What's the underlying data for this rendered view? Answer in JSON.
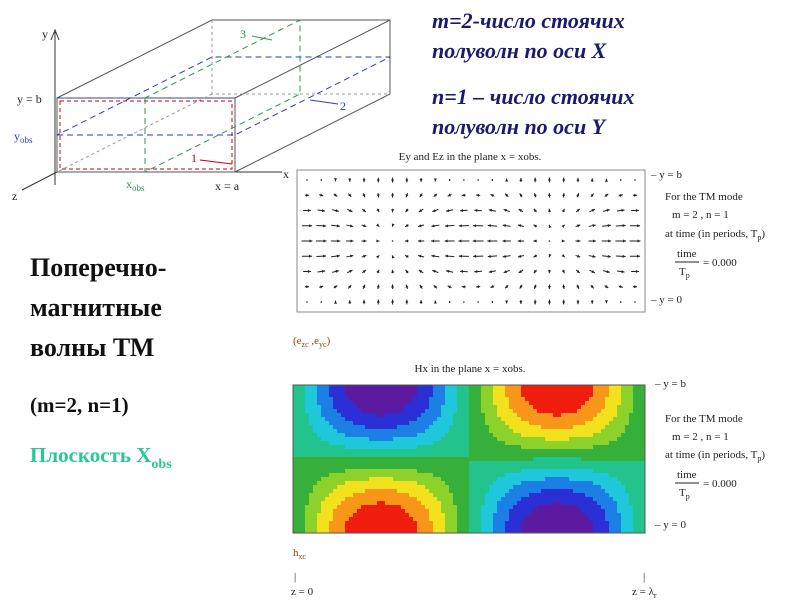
{
  "header": {
    "line1": "m=2-число стоячих",
    "line2": "полуволн по оси X",
    "line3": "n=1 – число стоячих",
    "line4": "полуволн по оси Y"
  },
  "left": {
    "title_lines": [
      "Поперечно-",
      "магнитные",
      "волны ТМ"
    ],
    "params": "(m=2, n=1)",
    "plane": "Плоскость X",
    "plane_sub": "obs"
  },
  "diagram": {
    "y_axis": "y",
    "y_b": "y = b",
    "y_obs": "y",
    "y_obs_sub": "obs",
    "z_axis": "z",
    "x_obs": "x",
    "x_obs_sub": "obs",
    "x_a": "x = a",
    "x_axis": "x",
    "label1": "1",
    "label2": "2",
    "label3": "3"
  },
  "plot_e": {
    "title": "Ey and Ez in the plane x = xobs.",
    "y_top": "– y = b",
    "y_bottom": "– y = 0",
    "mode": "For the TM mode",
    "mn": "m = 2  , n = 1",
    "time_text": "at time (in periods, T",
    "time_text_sub": "p",
    "time_text_end": ")",
    "frac_top": "time",
    "frac_bottom": "T",
    "frac_bottom_sub": "p",
    "frac_value": "= 0.000",
    "caption": "(e",
    "caption_sub1": "zc",
    "caption_mid": " ,e",
    "caption_sub2": "yc",
    "caption_end": ")"
  },
  "plot_h": {
    "title": "Hx in the plane x = xobs.",
    "y_top": "– y = b",
    "y_bottom": "– y = 0",
    "mode": "For the TM mode",
    "mn": "m = 2  , n = 1",
    "time_text": "at time (in periods, T",
    "time_text_sub": "p",
    "time_text_end": ")",
    "frac_top": "time",
    "frac_bottom": "T",
    "frac_bottom_sub": "p",
    "frac_value": "= 0.000",
    "caption": "h",
    "caption_sub": "xc",
    "z0_tick": "|",
    "z0": "z = 0",
    "zl_tick": "|",
    "zl": "z = λ",
    "zl_sub": "r"
  }
}
